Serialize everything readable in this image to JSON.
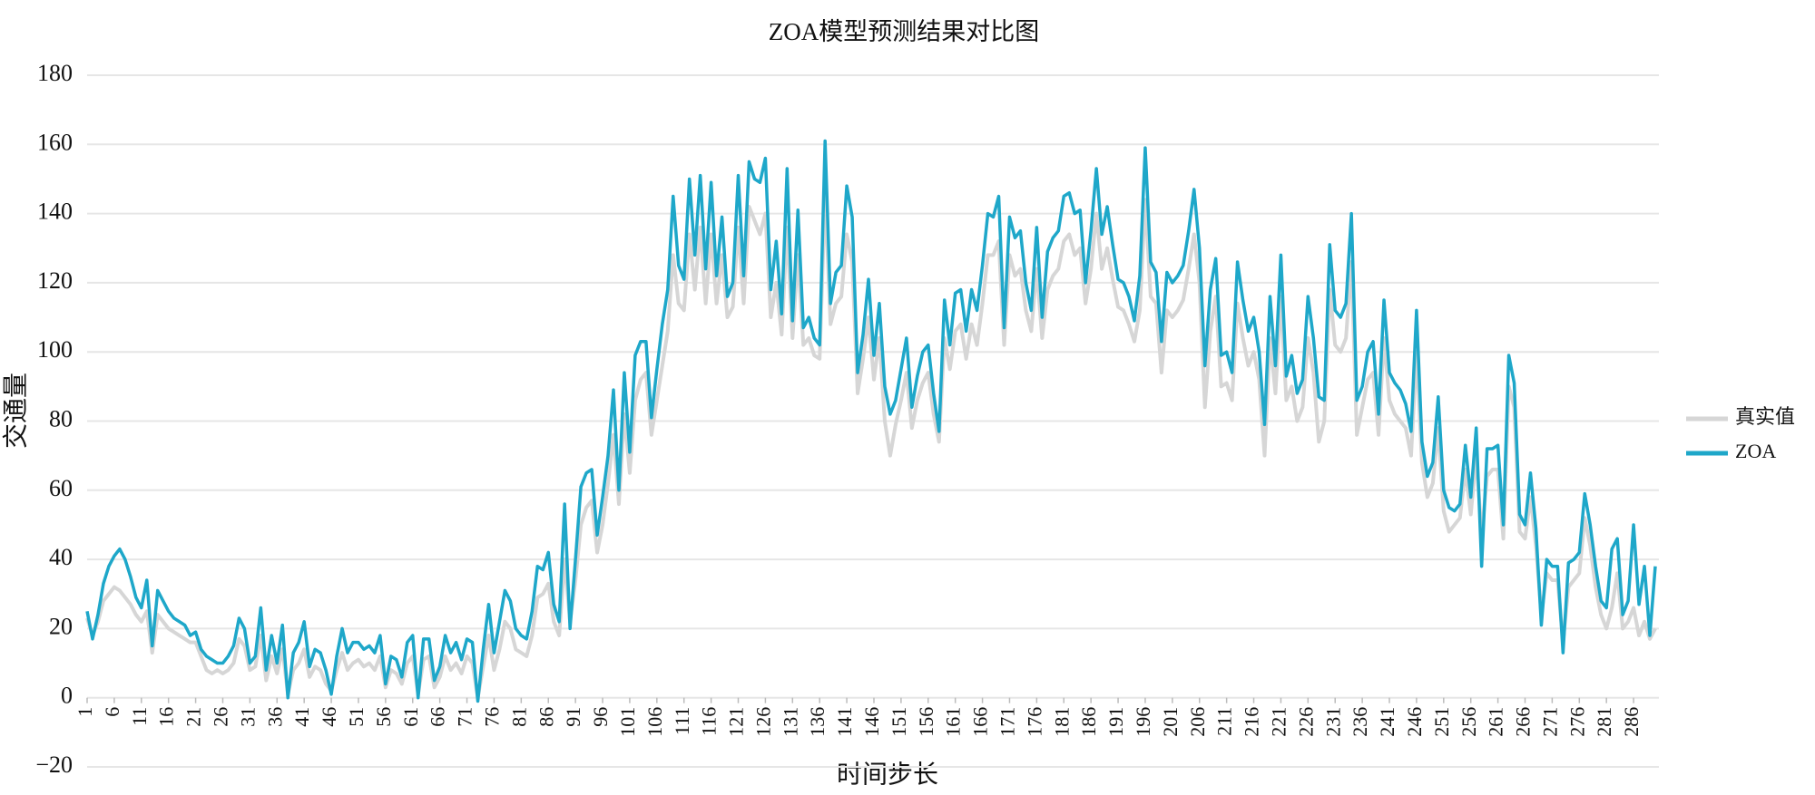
{
  "chart_data": {
    "type": "line",
    "title": "ZOA模型预测结果对比图",
    "x_label": "时间步长",
    "y_label": "交通量",
    "x": [
      1,
      2,
      3,
      4,
      5,
      6,
      7,
      8,
      9,
      10,
      11,
      12,
      13,
      14,
      15,
      16,
      17,
      18,
      19,
      20,
      21,
      22,
      23,
      24,
      25,
      26,
      27,
      28,
      29,
      30,
      31,
      32,
      33,
      34,
      35,
      36,
      37,
      38,
      39,
      40,
      41,
      42,
      43,
      44,
      45,
      46,
      47,
      48,
      49,
      50,
      51,
      52,
      53,
      54,
      55,
      56,
      57,
      58,
      59,
      60,
      61,
      62,
      63,
      64,
      65,
      66,
      67,
      68,
      69,
      70,
      71,
      72,
      73,
      74,
      75,
      76,
      77,
      78,
      79,
      80,
      81,
      82,
      83,
      84,
      85,
      86,
      87,
      88,
      89,
      90,
      91,
      92,
      93,
      94,
      95,
      96,
      97,
      98,
      99,
      100,
      101,
      102,
      103,
      104,
      105,
      106,
      107,
      108,
      109,
      110,
      111,
      112,
      113,
      114,
      115,
      116,
      117,
      118,
      119,
      120,
      121,
      122,
      123,
      124,
      125,
      126,
      127,
      128,
      129,
      130,
      131,
      132,
      133,
      134,
      135,
      136,
      137,
      138,
      139,
      140,
      141,
      142,
      143,
      144,
      145,
      146,
      147,
      148,
      149,
      150,
      151,
      152,
      153,
      154,
      155,
      156,
      157,
      158,
      159,
      160,
      161,
      162,
      163,
      164,
      165,
      166,
      167,
      168,
      169,
      170,
      171,
      172,
      173,
      174,
      175,
      176,
      177,
      178,
      179,
      180,
      181,
      182,
      183,
      184,
      185,
      186,
      187,
      188,
      189,
      190,
      191,
      192,
      193,
      194,
      195,
      196,
      197,
      198,
      199,
      200,
      201,
      202,
      203,
      204,
      205,
      206,
      207,
      208,
      209,
      210,
      211,
      212,
      213,
      214,
      215,
      216,
      217,
      218,
      219,
      220,
      221,
      222,
      223,
      224,
      225,
      226,
      227,
      228,
      229,
      230,
      231,
      232,
      233,
      234,
      235,
      236,
      237,
      238,
      239,
      240,
      241,
      242,
      243,
      244,
      245,
      246,
      247,
      248,
      249,
      250,
      251,
      252,
      253,
      254,
      255,
      256,
      257,
      258,
      259,
      260,
      261,
      262,
      263,
      264,
      265,
      266,
      267,
      268,
      269,
      270,
      271,
      272,
      273,
      274,
      275,
      276,
      277,
      278,
      279,
      280,
      281,
      282,
      283,
      284,
      285,
      286,
      287,
      288,
      289,
      290
    ],
    "series": [
      {
        "name": "真实值",
        "color": "#d6d6d6",
        "values": [
          23,
          18,
          22,
          28,
          30,
          32,
          31,
          29,
          27,
          24,
          22,
          25,
          13,
          24,
          22,
          20,
          19,
          18,
          17,
          16,
          16,
          12,
          8,
          7,
          8,
          7,
          8,
          10,
          17,
          15,
          8,
          9,
          18,
          5,
          12,
          7,
          14,
          1,
          8,
          10,
          14,
          6,
          9,
          8,
          4,
          2,
          8,
          13,
          8,
          10,
          11,
          9,
          10,
          8,
          12,
          3,
          8,
          7,
          4,
          10,
          12,
          1,
          11,
          12,
          3,
          6,
          12,
          8,
          10,
          7,
          12,
          10,
          0,
          9,
          18,
          8,
          14,
          22,
          20,
          14,
          13,
          12,
          18,
          29,
          30,
          33,
          22,
          18,
          40,
          22,
          34,
          50,
          55,
          57,
          42,
          50,
          62,
          76,
          56,
          82,
          65,
          86,
          92,
          94,
          76,
          86,
          96,
          106,
          128,
          114,
          112,
          134,
          118,
          136,
          114,
          134,
          114,
          128,
          110,
          113,
          136,
          114,
          142,
          138,
          134,
          140,
          110,
          120,
          105,
          136,
          104,
          128,
          102,
          104,
          99,
          98,
          146,
          108,
          114,
          116,
          134,
          126,
          88,
          98,
          110,
          92,
          104,
          80,
          70,
          79,
          86,
          94,
          78,
          86,
          91,
          94,
          82,
          74,
          104,
          95,
          106,
          108,
          98,
          108,
          102,
          114,
          128,
          128,
          132,
          102,
          128,
          122,
          124,
          112,
          106,
          124,
          104,
          118,
          122,
          124,
          132,
          134,
          128,
          130,
          114,
          124,
          140,
          124,
          130,
          121,
          113,
          112,
          108,
          103,
          112,
          144,
          116,
          114,
          94,
          112,
          110,
          112,
          115,
          124,
          134,
          120,
          84,
          106,
          116,
          90,
          91,
          86,
          114,
          104,
          96,
          100,
          92,
          70,
          104,
          88,
          116,
          86,
          90,
          80,
          84,
          104,
          94,
          74,
          80,
          118,
          102,
          100,
          104,
          126,
          76,
          84,
          92,
          94,
          76,
          104,
          86,
          82,
          80,
          78,
          70,
          100,
          68,
          58,
          62,
          78,
          54,
          48,
          50,
          52,
          66,
          53,
          70,
          47,
          64,
          66,
          66,
          46,
          90,
          84,
          48,
          46,
          58,
          44,
          24,
          36,
          34,
          34,
          16,
          32,
          34,
          36,
          52,
          44,
          32,
          24,
          20,
          26,
          36,
          20,
          22,
          26,
          18,
          22,
          17,
          20
        ]
      },
      {
        "name": "ZOA",
        "color": "#1ea7c9",
        "values": [
          25,
          17,
          24,
          33,
          38,
          41,
          43,
          40,
          35,
          29,
          26,
          34,
          15,
          31,
          28,
          25,
          23,
          22,
          21,
          18,
          19,
          14,
          12,
          11,
          10,
          10,
          12,
          15,
          23,
          20,
          10,
          12,
          26,
          8,
          18,
          10,
          21,
          0,
          13,
          16,
          22,
          9,
          14,
          13,
          8,
          1,
          12,
          20,
          13,
          16,
          16,
          14,
          15,
          13,
          18,
          4,
          12,
          11,
          6,
          16,
          18,
          0,
          17,
          17,
          5,
          9,
          18,
          13,
          16,
          11,
          17,
          16,
          -1,
          14,
          27,
          13,
          22,
          31,
          28,
          20,
          18,
          17,
          25,
          38,
          37,
          42,
          27,
          22,
          56,
          20,
          40,
          61,
          65,
          66,
          47,
          58,
          70,
          89,
          60,
          94,
          71,
          99,
          103,
          103,
          81,
          95,
          108,
          118,
          145,
          125,
          121,
          150,
          128,
          151,
          124,
          149,
          122,
          139,
          116,
          120,
          151,
          122,
          155,
          150,
          149,
          156,
          118,
          132,
          111,
          153,
          109,
          141,
          107,
          110,
          104,
          102,
          161,
          114,
          123,
          125,
          148,
          139,
          94,
          105,
          121,
          99,
          114,
          90,
          82,
          86,
          95,
          104,
          84,
          93,
          100,
          102,
          88,
          77,
          115,
          102,
          117,
          118,
          106,
          118,
          112,
          125,
          140,
          139,
          145,
          107,
          139,
          133,
          135,
          120,
          112,
          136,
          110,
          129,
          133,
          135,
          145,
          146,
          140,
          141,
          120,
          135,
          153,
          134,
          142,
          131,
          121,
          120,
          116,
          109,
          122,
          159,
          126,
          123,
          103,
          123,
          120,
          122,
          125,
          135,
          147,
          130,
          96,
          118,
          127,
          99,
          100,
          94,
          126,
          115,
          106,
          110,
          100,
          79,
          116,
          96,
          128,
          93,
          99,
          88,
          92,
          116,
          104,
          87,
          86,
          131,
          112,
          110,
          114,
          140,
          86,
          90,
          100,
          103,
          82,
          115,
          94,
          91,
          89,
          85,
          77,
          112,
          74,
          64,
          68,
          87,
          60,
          55,
          54,
          56,
          73,
          58,
          78,
          38,
          72,
          72,
          73,
          50,
          99,
          91,
          53,
          50,
          65,
          49,
          21,
          40,
          38,
          38,
          13,
          39,
          40,
          42,
          59,
          50,
          38,
          28,
          26,
          43,
          46,
          24,
          28,
          50,
          27,
          38,
          18,
          38
        ]
      }
    ],
    "xlim": [
      1,
      290
    ],
    "xticks": [
      1,
      6,
      11,
      16,
      21,
      26,
      31,
      36,
      41,
      46,
      51,
      56,
      61,
      66,
      71,
      76,
      81,
      86,
      91,
      96,
      101,
      106,
      111,
      116,
      121,
      126,
      131,
      136,
      141,
      146,
      151,
      156,
      161,
      166,
      171,
      176,
      181,
      186,
      191,
      196,
      201,
      206,
      211,
      216,
      221,
      226,
      231,
      236,
      241,
      246,
      251,
      256,
      261,
      266,
      271,
      276,
      281,
      286
    ],
    "ylim": [
      -20,
      180
    ],
    "yticks": [
      {
        "value": -20,
        "label": "−20"
      },
      0,
      20,
      40,
      60,
      80,
      100,
      120,
      140,
      160,
      180
    ],
    "grid": true,
    "legend": "right"
  }
}
